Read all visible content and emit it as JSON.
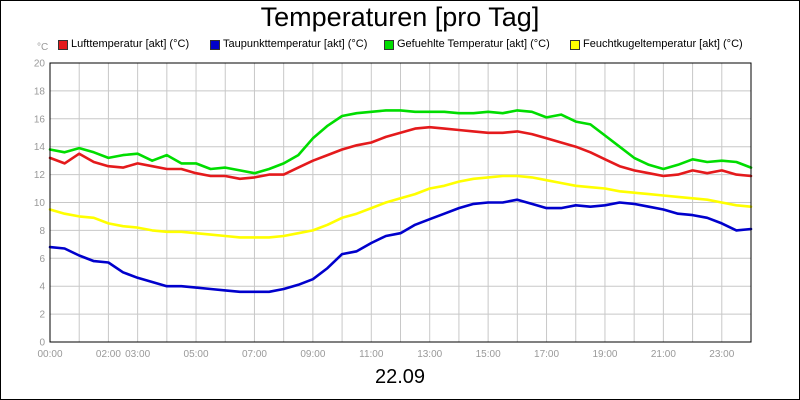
{
  "title": "Temperaturen [pro Tag]",
  "date": "22.09",
  "unit": "°C",
  "chart_data": {
    "type": "line",
    "title": "Temperaturen [pro Tag]",
    "xlabel": "22.09",
    "ylabel": "°C",
    "ylim": [
      0,
      20
    ],
    "xlim_hours": [
      0,
      24
    ],
    "grid": true,
    "legend_position": "top",
    "y_ticks": [
      "0",
      "2",
      "4",
      "6",
      "8",
      "10",
      "12",
      "14",
      "16",
      "18",
      "20"
    ],
    "x_ticks": [
      {
        "hour": 0,
        "label": "00:00"
      },
      {
        "hour": 2,
        "label": "02:00"
      },
      {
        "hour": 3,
        "label": "03:00"
      },
      {
        "hour": 5,
        "label": "05:00"
      },
      {
        "hour": 7,
        "label": "07:00"
      },
      {
        "hour": 9,
        "label": "09:00"
      },
      {
        "hour": 11,
        "label": "11:00"
      },
      {
        "hour": 13,
        "label": "13:00"
      },
      {
        "hour": 15,
        "label": "15:00"
      },
      {
        "hour": 17,
        "label": "17:00"
      },
      {
        "hour": 19,
        "label": "19:00"
      },
      {
        "hour": 21,
        "label": "21:00"
      },
      {
        "hour": 23,
        "label": "23:00"
      }
    ],
    "x_hours": [
      0,
      0.5,
      1,
      1.5,
      2,
      2.5,
      3,
      3.5,
      4,
      4.5,
      5,
      5.5,
      6,
      6.5,
      7,
      7.5,
      8,
      8.5,
      9,
      9.5,
      10,
      10.5,
      11,
      11.5,
      12,
      12.5,
      13,
      13.5,
      14,
      14.5,
      15,
      15.5,
      16,
      16.5,
      17,
      17.5,
      18,
      18.5,
      19,
      19.5,
      20,
      20.5,
      21,
      21.5,
      22,
      22.5,
      23,
      23.5,
      24
    ],
    "series": [
      {
        "name": "Lufttemperatur [akt] (°C)",
        "color": "#e41a1c",
        "values": [
          13.2,
          12.8,
          13.5,
          12.9,
          12.6,
          12.5,
          12.8,
          12.6,
          12.4,
          12.4,
          12.1,
          11.9,
          11.9,
          11.7,
          11.8,
          12.0,
          12.0,
          12.5,
          13.0,
          13.4,
          13.8,
          14.1,
          14.3,
          14.7,
          15.0,
          15.3,
          15.4,
          15.3,
          15.2,
          15.1,
          15.0,
          15.0,
          15.1,
          14.9,
          14.6,
          14.3,
          14.0,
          13.6,
          13.1,
          12.6,
          12.3,
          12.1,
          11.9,
          12.0,
          12.3,
          12.1,
          12.3,
          12.0,
          11.9
        ]
      },
      {
        "name": "Taupunkttemperatur [akt] (°C)",
        "color": "#0000cc",
        "values": [
          6.8,
          6.7,
          6.2,
          5.8,
          5.7,
          5.0,
          4.6,
          4.3,
          4.0,
          4.0,
          3.9,
          3.8,
          3.7,
          3.6,
          3.6,
          3.6,
          3.8,
          4.1,
          4.5,
          5.3,
          6.3,
          6.5,
          7.1,
          7.6,
          7.8,
          8.4,
          8.8,
          9.2,
          9.6,
          9.9,
          10.0,
          10.0,
          10.2,
          9.9,
          9.6,
          9.6,
          9.8,
          9.7,
          9.8,
          10.0,
          9.9,
          9.7,
          9.5,
          9.2,
          9.1,
          8.9,
          8.5,
          8.0,
          8.1
        ]
      },
      {
        "name": "Gefuehlte Temperatur [akt] (°C)",
        "color": "#00dd00",
        "values": [
          13.8,
          13.6,
          13.9,
          13.6,
          13.2,
          13.4,
          13.5,
          13.0,
          13.4,
          12.8,
          12.8,
          12.4,
          12.5,
          12.3,
          12.1,
          12.4,
          12.8,
          13.4,
          14.6,
          15.5,
          16.2,
          16.4,
          16.5,
          16.6,
          16.6,
          16.5,
          16.5,
          16.5,
          16.4,
          16.4,
          16.5,
          16.4,
          16.6,
          16.5,
          16.1,
          16.3,
          15.8,
          15.6,
          14.8,
          14.0,
          13.2,
          12.7,
          12.4,
          12.7,
          13.1,
          12.9,
          13.0,
          12.9,
          12.5
        ]
      },
      {
        "name": "Feuchtkugeltemperatur [akt] (°C)",
        "color": "#ffff00",
        "values": [
          9.5,
          9.2,
          9.0,
          8.9,
          8.5,
          8.3,
          8.2,
          8.0,
          7.9,
          7.9,
          7.8,
          7.7,
          7.6,
          7.5,
          7.5,
          7.5,
          7.6,
          7.8,
          8.0,
          8.4,
          8.9,
          9.2,
          9.6,
          10.0,
          10.3,
          10.6,
          11.0,
          11.2,
          11.5,
          11.7,
          11.8,
          11.9,
          11.9,
          11.8,
          11.6,
          11.4,
          11.2,
          11.1,
          11.0,
          10.8,
          10.7,
          10.6,
          10.5,
          10.4,
          10.3,
          10.2,
          10.0,
          9.8,
          9.7
        ]
      }
    ]
  }
}
